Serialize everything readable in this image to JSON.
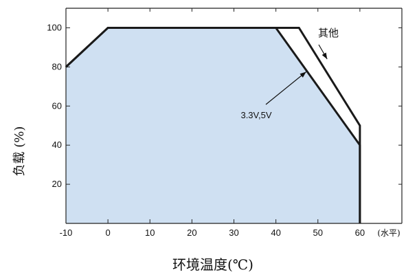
{
  "chart_data": {
    "type": "area",
    "title": "",
    "xlabel": "环境温度(℃)",
    "ylabel": "负载 (%)",
    "x_unit_note": "(水平)",
    "xlim": [
      -10,
      70
    ],
    "ylim": [
      0,
      110
    ],
    "x_ticks": [
      -10,
      0,
      10,
      20,
      30,
      40,
      50,
      60
    ],
    "x_tick_labels": [
      "-10",
      "0",
      "10",
      "20",
      "30",
      "40",
      "50",
      "60"
    ],
    "y_ticks": [
      20,
      40,
      60,
      80,
      100
    ],
    "y_tick_labels": [
      "20",
      "40",
      "60",
      "80",
      "100"
    ],
    "grid": false,
    "series": [
      {
        "name": "3.3V,5V",
        "x": [
          -10,
          0,
          40,
          60,
          60
        ],
        "y": [
          80,
          100,
          100,
          40,
          0
        ]
      },
      {
        "name": "其他",
        "x": [
          -10,
          0,
          45.5,
          60,
          60
        ],
        "y": [
          80,
          100,
          100,
          50,
          0
        ]
      }
    ],
    "annotations": [
      {
        "text": "其他",
        "points_to_series": "其他"
      },
      {
        "text": "3.3V,5V",
        "points_to_series": "3.3V,5V"
      }
    ],
    "colors": {
      "fill": "#cfe0f2",
      "line": "#1a1a1a",
      "axis": "#222222"
    }
  }
}
